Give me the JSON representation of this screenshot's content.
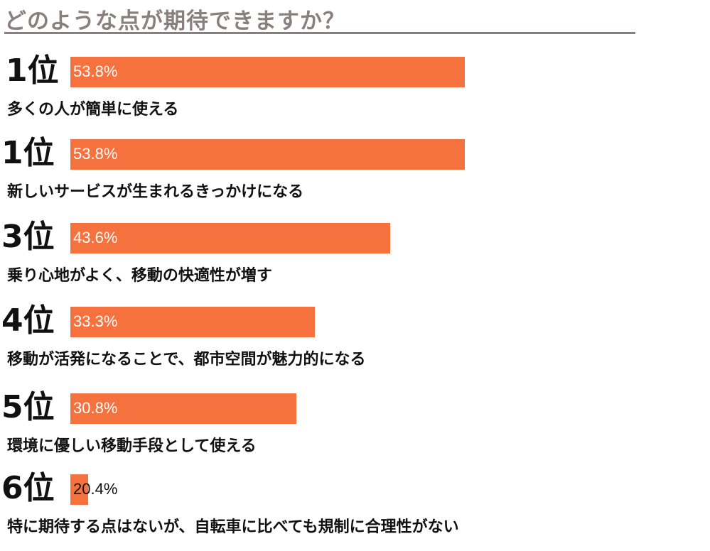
{
  "title": "どのような点が期待できますか？",
  "colors": {
    "bar": "#f5723f",
    "title": "#8a7f7f",
    "text": "#111111"
  },
  "chart_data": {
    "type": "bar",
    "orientation": "horizontal",
    "categories": [
      "新しいサービスが生まれるきっかけになる",
      "多くの人が簡単に使える",
      "乗り心地がよく、移動の快適性が増す",
      "移動が活発になることで、都市空間が魅力的になる",
      "環境に優しい移動手段として使える",
      "特に期待する点はないが、自転車に比べても規制に合理性がない"
    ],
    "values": [
      53.8,
      53.8,
      43.6,
      33.3,
      30.8,
      20.4
    ],
    "value_unit": "%",
    "xlim": [
      0,
      53.8
    ],
    "grid": false
  },
  "items": [
    {
      "rank": "1位",
      "label": "53.8%",
      "description": "多くの人が簡単に使える",
      "value": 53.8
    },
    {
      "rank": "1位",
      "label": "53.8%",
      "description": "新しいサービスが生まれるきっかけになる",
      "value": 53.8
    },
    {
      "rank": "3位",
      "label": "43.6%",
      "description": "乗り心地がよく、移動の快適性が増す",
      "value": 43.6
    },
    {
      "rank": "4位",
      "label": "33.3%",
      "description": "移動が活発になることで、都市空間が魅力的になる",
      "value": 33.3
    },
    {
      "rank": "5位",
      "label": "30.8%",
      "description": "環境に優しい移動手段として使える",
      "value": 30.8
    },
    {
      "rank": "6位",
      "label": "20.4%",
      "description": "特に期待する点はないが、自転車に比べても規制に合理性がない",
      "value": 20.4
    }
  ]
}
